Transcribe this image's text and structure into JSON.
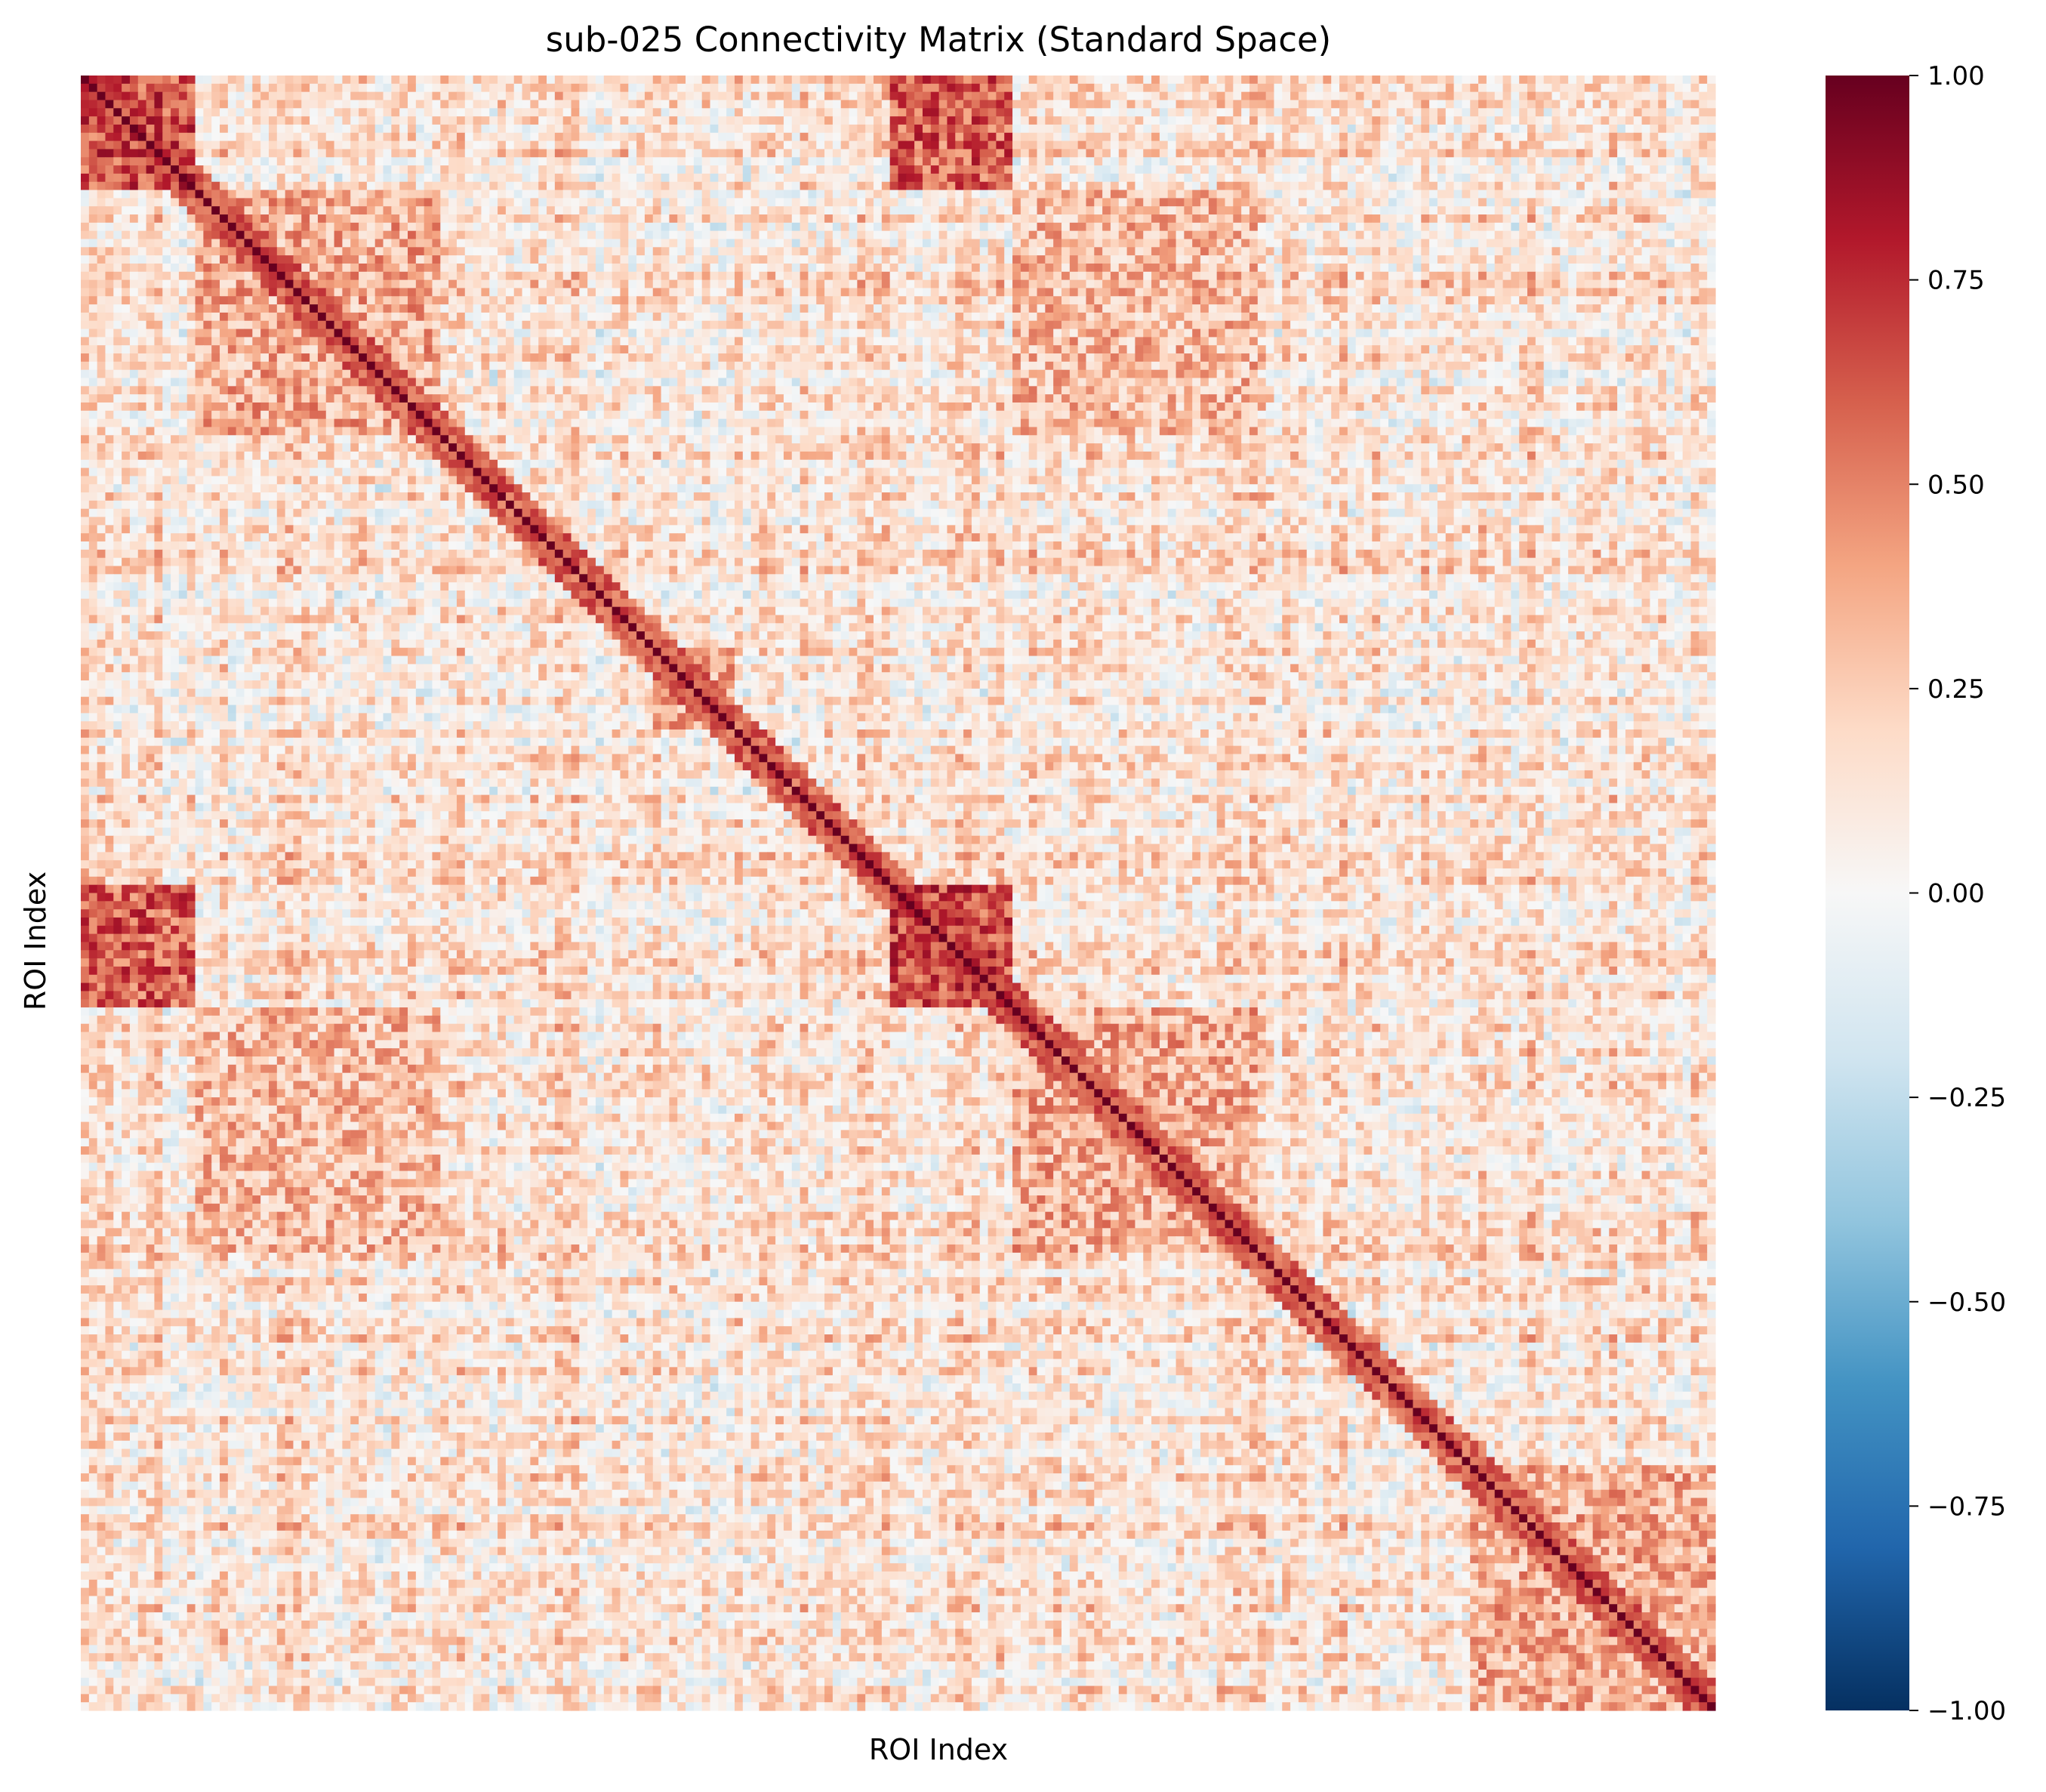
{
  "chart_data": {
    "type": "heatmap",
    "title": "sub-025 Connectivity Matrix (Standard Space)",
    "xlabel": "ROI Index",
    "ylabel": "ROI Index",
    "n_rois": 200,
    "x_ticks_shown": false,
    "y_ticks_shown": false,
    "value_range": [
      -1.0,
      1.0
    ],
    "diagonal_value": 1.0,
    "colormap": "RdBu_r",
    "colormap_stops": [
      "#053061",
      "#2166ac",
      "#4393c3",
      "#92c5de",
      "#d1e5f0",
      "#f7f7f7",
      "#fddbc7",
      "#f4a582",
      "#d6604d",
      "#b2182b",
      "#67001f"
    ],
    "colorbar": {
      "ticks": [
        1.0,
        0.75,
        0.5,
        0.25,
        0.0,
        -0.25,
        -0.5,
        -0.75,
        -1.0
      ],
      "tick_labels": [
        "1.00",
        "0.75",
        "0.50",
        "0.25",
        "0.00",
        "−0.25",
        "−0.50",
        "−0.75",
        "−1.00"
      ]
    },
    "structure": {
      "notes_visible": false,
      "strong_blocks": [
        {
          "rows": [
            0,
            14
          ],
          "cols": [
            0,
            14
          ],
          "mean": 0.65
        },
        {
          "rows": [
            0,
            14
          ],
          "cols": [
            99,
            114
          ],
          "mean": 0.6
        },
        {
          "rows": [
            99,
            114
          ],
          "cols": [
            0,
            14
          ],
          "mean": 0.6
        },
        {
          "rows": [
            99,
            114
          ],
          "cols": [
            99,
            114
          ],
          "mean": 0.65
        },
        {
          "rows": [
            14,
            44
          ],
          "cols": [
            14,
            44
          ],
          "mean": 0.35
        },
        {
          "rows": [
            114,
            144
          ],
          "cols": [
            114,
            144
          ],
          "mean": 0.35
        },
        {
          "rows": [
            14,
            44
          ],
          "cols": [
            114,
            144
          ],
          "mean": 0.3
        },
        {
          "rows": [
            114,
            144
          ],
          "cols": [
            14,
            44
          ],
          "mean": 0.3
        },
        {
          "rows": [
            170,
            200
          ],
          "cols": [
            170,
            200
          ],
          "mean": 0.35
        },
        {
          "rows": [
            70,
            80
          ],
          "cols": [
            70,
            80
          ],
          "mean": 0.4
        }
      ],
      "background_mean": 0.12,
      "background_spread": 0.22
    }
  }
}
